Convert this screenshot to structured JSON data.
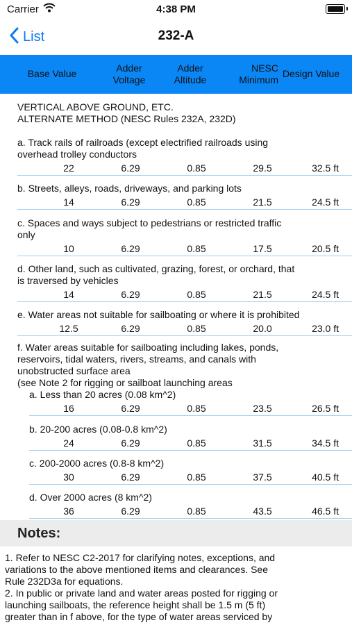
{
  "status": {
    "carrier": "Carrier",
    "time": "4:38 PM"
  },
  "nav": {
    "back": "List",
    "title": "232-A"
  },
  "columns": [
    "Base Value",
    "Adder Voltage",
    "Adder Altitude",
    "NESC Minimum",
    "Design Value"
  ],
  "intro": [
    "VERTICAL ABOVE GROUND, ETC.",
    "ALTERNATE METHOD (NESC Rules 232A, 232D)"
  ],
  "rows": [
    {
      "text": [
        "a. Track rails of railroads (except electrified railroads using",
        "overhead trolley conductors"
      ],
      "values": [
        "22",
        "6.29",
        "0.85",
        "29.5",
        "32.5 ft"
      ]
    },
    {
      "text": [
        "b. Streets, alleys, roads, driveways, and parking lots"
      ],
      "values": [
        "14",
        "6.29",
        "0.85",
        "21.5",
        "24.5 ft"
      ]
    },
    {
      "text": [
        "c. Spaces and ways subject to pedestrians or restricted traffic",
        "only"
      ],
      "values": [
        "10",
        "6.29",
        "0.85",
        "17.5",
        "20.5 ft"
      ]
    },
    {
      "text": [
        "d. Other land, such as cultivated, grazing, forest, or orchard, that",
        "is traversed by vehicles"
      ],
      "values": [
        "14",
        "6.29",
        "0.85",
        "21.5",
        "24.5 ft"
      ]
    },
    {
      "text": [
        "e. Water areas not suitable for sailboating or where it is prohibited"
      ],
      "values": [
        "12.5",
        "6.29",
        "0.85",
        "20.0",
        "23.0 ft"
      ]
    },
    {
      "text": [
        "f. Water areas suitable for sailboating including lakes, ponds,",
        "reservoirs, tidal waters, rivers, streams, and canals with",
        "unobstructed surface area",
        "(see Note 2 for rigging or sailboat launching areas"
      ],
      "sub": "a. Less than 20 acres (0.08 km^2)",
      "values": [
        "16",
        "6.29",
        "0.85",
        "23.5",
        "26.5 ft"
      ]
    },
    {
      "text": [
        "b. 20-200 acres (0.08-0.8 km^2)"
      ],
      "indent": true,
      "values": [
        "24",
        "6.29",
        "0.85",
        "31.5",
        "34.5 ft"
      ]
    },
    {
      "text": [
        "c. 200-2000 acres (0.8-8 km^2)"
      ],
      "indent": true,
      "values": [
        "30",
        "6.29",
        "0.85",
        "37.5",
        "40.5 ft"
      ]
    },
    {
      "text": [
        "d. Over 2000 acres (8 km^2)"
      ],
      "indent": true,
      "values": [
        "36",
        "6.29",
        "0.85",
        "43.5",
        "46.5 ft"
      ]
    }
  ],
  "notes": {
    "title": "Notes:",
    "lines": [
      "1. Refer to NESC C2-2017 for clarifying notes, exceptions, and",
      "variations to the above mentioned items and clearances. See",
      "Rule 232D3a for equations.",
      "2. In public or private land and water areas posted for rigging or",
      "launching sailboats, the reference height shall be 1.5 m (5 ft)",
      "greater than in f above, for the type of water areas serviced by"
    ]
  }
}
